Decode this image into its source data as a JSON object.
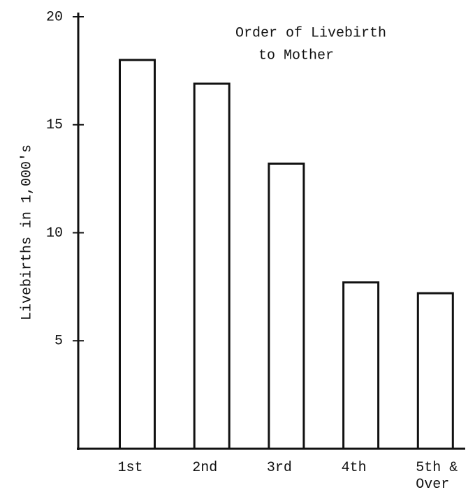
{
  "chart_data": {
    "type": "bar",
    "title": [
      "Order of Livebirth",
      "to Mother"
    ],
    "y_label": "Livebirths in 1,000's",
    "categories": [
      "1st",
      "2nd",
      "3rd",
      "4th",
      "5th & Over"
    ],
    "values": [
      18,
      16.9,
      13.2,
      7.7,
      7.2
    ],
    "color": "#ffffff",
    "ylim": [
      0,
      20
    ],
    "yticks": [
      5,
      10,
      15,
      20
    ],
    "grid": false
  }
}
